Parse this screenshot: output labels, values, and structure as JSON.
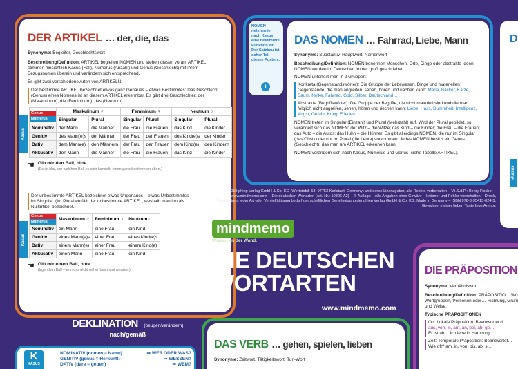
{
  "artikel": {
    "title": "DER ARTIKEL",
    "subtitle": "… der, die, das",
    "synonyme_label": "Synonyme:",
    "synonyme": "Begleiter, Geschlechtswort",
    "beschreibung_label": "Beschreibung/Definition:",
    "beschreibung": "ARTIKEL begleiten NOMEN und stehen diesen voran. ARTIKEL stimmen hinsichtlich Kasus (Fall), Numerus (Anzahl) und Genus (Geschlecht) mit ihrem Bezugsnomen überein und verändern sich entsprechend.",
    "arten": "Es gibt zwei verschiedene Arten von ARTIKELN:",
    "bestimmte": "Der bestimmte ARTIKEL bezeichnet etwas ganz Genaues – etwas Bestimmtes: Das Geschlecht (Genus) eines Nomens ist an diesem ARTIKEL erkennbar. Es gibt drei Geschlechter: der (Maskulinum), die (Femininum), das (Neutrum).",
    "table1": {
      "col_maskulinum": "Maskulinum ♂",
      "col_femininum": "Femininum ♀",
      "col_neutrum": "Neutrum ○",
      "singular": "Singular",
      "plural": "Plural",
      "kasus": "Kasus",
      "genus": "Genus",
      "numerus": "Numerus",
      "rows": [
        [
          "Nominativ",
          "der Mann",
          "die Männer",
          "die Frau",
          "die Frauen",
          "das Kind",
          "die Kinder"
        ],
        [
          "Genitiv",
          "des Mann(e)s",
          "der Männer",
          "der Frau",
          "der Frauen",
          "des Kind(e)s",
          "der Kinder"
        ],
        [
          "Dativ",
          "dem Mann(e)",
          "den Männern",
          "der Frau",
          "den Frauen",
          "dem Kind(e)",
          "den Kindern"
        ],
        [
          "Akkusativ",
          "den Mann",
          "die Männer",
          "die Frau",
          "die Frauen",
          "das Kind",
          "die Kinder"
        ]
      ]
    },
    "beispiel1": "Gib mir den Ball, bitte.",
    "beispiel1_note": "(Es ist klar, um welchen Ball es sich handelt, einen ganz bestimmten eben.)",
    "unbestimmte": "Der unbestimmte ARTIKEL bezeichnet etwas Ungenaues – etwas Unbestimmtes im Singular. (Im Plural entfällt der unbestimmte ARTIKEL, weshalb man ihn als Nullartikel bezeichnet.)",
    "table2": {
      "col_maskulinum": "Maskulinum ♂",
      "col_femininum": "Femininum ♀",
      "col_neutrum": "Neutrum ○",
      "rows": [
        [
          "Nominativ",
          "ein Mann",
          "eine Frau",
          "ein Kind"
        ],
        [
          "Genitiv",
          "eines Mann(e)s",
          "einer Frau",
          "eines Kind(e)s"
        ],
        [
          "Dativ",
          "einem Mann(e)",
          "einer Frau",
          "einem Kind(e)"
        ],
        [
          "Akkusativ",
          "einen Mann",
          "eine Frau",
          "ein Kind"
        ]
      ]
    },
    "beispiel2": "Gib mir einen Ball, bitte.",
    "beispiel2_note": "(Irgendein Ball – er muss nicht näher bestimmt werden.)"
  },
  "nomen": {
    "note": "NOMEN nehmen je nach Kasus eine bestimmte Funktion ein. Der Satzbau ist daher Teil dieses Posters.",
    "title": "DAS NOMEN",
    "subtitle": "… Fahrrad, Liebe, Mann",
    "synonyme_label": "Synonyme:",
    "synonyme": "Substantiv, Hauptwort, Namenwort",
    "beschreibung_label": "Beschreibung/Definition:",
    "beschreibung": "NOMEN benennen Menschen, Orte, Dinge oder abstrakte Ideen. NOMEN werden im Deutschen immer groß geschrieben.",
    "gruppen": "NOMEN unterteilt man in 2 Gruppen:",
    "konkreta": "Konkreta (Gegenstandswörter): Die Gruppe der Lebewesen, Dinge und materiellen Gegenstände, die man angreifen, sehen, hören und riechen kann:",
    "konkreta_bsp": "Maria, Bäcker, Katze, Baum, Nelke, Fahrrad, Gold, Silber, Deutschland…",
    "abstrakta": "Abstrakta (Begriffswörter): Die Gruppe der Begriffe, die nicht materiell sind und die man folglich nicht angreifen, sehen, hören und riechen kann:",
    "abstrakta_bsp": "Liebe, Hass, Dummheit, Intelligenz, Angst, Gefahr, Krieg, Frieden…",
    "paragraph": "NOMEN treten im Singular (Einzahl) und Plural (Mehrzahl) auf. Wird der Plural gebildet, so verändert sich das NOMEN: der Witz – die Witze; das Kind – die Kinder; die Frau – die Frauen; das Auto – die Autos; das Huhn – die Hühner. Es gibt allerdings NOMEN, die nur im Singular (das Obst) oder nur im Plural (die Leute) vorkommen. Jedes NOMEN besitzt ein Genus (Geschlecht), das man am ARTIKEL erkennen kann.",
    "last": "NOMEN verändern sich nach Kasus, Numerus und Genus [siehe Tabelle ARTIKEL]."
  },
  "center": {
    "copyright": "© 2019 phiep Verlag GmbH & Co. KG (Wertstabil: 53, 97753 Karlstadt, Germany) und deren Lizenzgeber, alle Rechte vorbehalten – V.i.S.d.P.: Henry Fischer – www.mindmemo.com – Die deutschen Wortarten (Art.-Nr.: 10806-A2) – 2. Auflage – Alle Angaben ohne Gewähr – Irrtümer und Fehler vorbehalten – Druck, Verarbeitung jeder Art oder Vervielfältigung bedarf der schriftlichen Genehmigung der phiep Verlag GmbH & Co. KG. Made in Germany – ISBN 978-3-95413-024-5. Gewidmet meiner lieben Tante Inge Arnhor.",
    "brand": "mindmemo",
    "brand_tag": "Wissen an der Wand.",
    "title_line1": "DIE DEUTSCHEN",
    "title_line2": "WORTARTEN",
    "url": "www.mindmemo.com"
  },
  "deklination": {
    "title": "DEKLINATION",
    "sub": "(beugen/verändern)",
    "sub2": "nach/gemäß",
    "k": "K",
    "kasus": "KASUS",
    "lines": [
      [
        "NOMINATIV (nomen = Name)",
        "⇒ WER ODER WAS?"
      ],
      [
        "GENITIV (genus = Herkunft)",
        "⇒ WESSEN?"
      ],
      [
        "DATIV (dare = geben)",
        "⇒ WEM?"
      ]
    ]
  },
  "verb": {
    "title": "DAS VERB",
    "subtitle": "… gehen, spielen, lieben",
    "synonyme_label": "Synonyme:",
    "synonyme": "Zeitwort, Tätigkeitswort, Tun-Wort"
  },
  "praeposition": {
    "title": "DIE PRÄPOSITION",
    "synonyme_label": "Synonyme:",
    "synonyme": "Verhältniswort",
    "beschreibung_label": "Beschreibung/Definition:",
    "beschreibung": "PRÄPOSITIO… Wörtern, Wortgruppen, Personen oder… Richtung, Grund, Art und Weise.",
    "typische": "Typische PRÄPOSITIONEN",
    "ort": "Ort: Lokale Präposition: Beantwortet d…",
    "ort_bsp": "aus, von, in, auf, an, bei, ab, ge…",
    "ort_satz": "Er ist ab… Ich lebe in Hamburg.",
    "zeit": "Zeit: Temporale Präposition: Beantwortet…",
    "zeit_satz": "Wie oft? am, in, von, bis, ab, s…"
  },
  "right_edge": {
    "d": "D",
    "kasus": "«Kasus"
  },
  "colors": {
    "background": "#3b2b78",
    "artikel_frame": "#e07a26",
    "nomen_frame": "#1f8fd0",
    "verb_frame": "#3aa94a",
    "praep_frame": "#9b3fa0",
    "accent_red": "#d8232a",
    "accent_blue": "#1f7ac2",
    "brand_green": "#5aa72f"
  }
}
